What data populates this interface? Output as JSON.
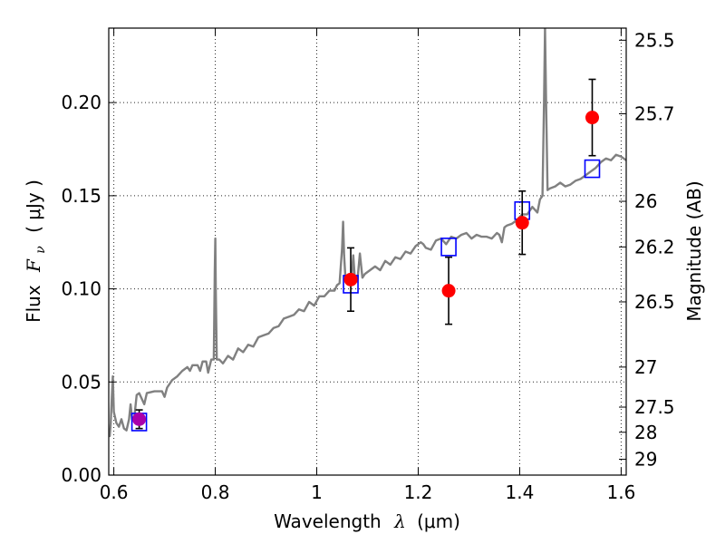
{
  "chart_data": {
    "type": "scatter",
    "title": "",
    "xlabel": {
      "prefix": "Wavelength",
      "symbol": "λ",
      "unit": "(μm)"
    },
    "ylabel": {
      "prefix": "Flux",
      "symbol": "F",
      "sub": "ν",
      "unit": "( μJy )"
    },
    "ylabel_right": "Magnitude (AB)",
    "xlim": [
      0.59,
      1.61
    ],
    "ylim": [
      0.0,
      0.24
    ],
    "grid": true,
    "x_ticks": [
      {
        "value": 0.6,
        "label": "0.6"
      },
      {
        "value": 0.8,
        "label": "0.8"
      },
      {
        "value": 1.0,
        "label": "1"
      },
      {
        "value": 1.2,
        "label": "1.2"
      },
      {
        "value": 1.4,
        "label": "1.4"
      },
      {
        "value": 1.6,
        "label": "1.6"
      }
    ],
    "y_ticks": [
      {
        "value": 0.0,
        "label": "0.00"
      },
      {
        "value": 0.05,
        "label": "0.05"
      },
      {
        "value": 0.1,
        "label": "0.10"
      },
      {
        "value": 0.15,
        "label": "0.15"
      },
      {
        "value": 0.2,
        "label": "0.20"
      }
    ],
    "y_right_ticks": [
      {
        "value": 25.5,
        "label": "25.5"
      },
      {
        "value": 25.7,
        "label": "25.7"
      },
      {
        "value": 26.0,
        "label": "26"
      },
      {
        "value": 26.2,
        "label": "26.2"
      },
      {
        "value": 26.5,
        "label": "26.5"
      },
      {
        "value": 27.0,
        "label": "27"
      },
      {
        "value": 27.5,
        "label": "27.5"
      },
      {
        "value": 28.0,
        "label": "28"
      },
      {
        "value": 29.0,
        "label": "29"
      }
    ],
    "y_right_tick_positions_flux": [
      0.2335,
      0.194,
      0.147,
      0.1225,
      0.093,
      0.058,
      0.0365,
      0.023,
      0.0085
    ],
    "series": [
      {
        "kind": "line",
        "color": "#808080",
        "points": [
          [
            0.59,
            0.021
          ],
          [
            0.592,
            0.021
          ],
          [
            0.594,
            0.028
          ],
          [
            0.596,
            0.042
          ],
          [
            0.598,
            0.053
          ],
          [
            0.6,
            0.034
          ],
          [
            0.605,
            0.028
          ],
          [
            0.61,
            0.026
          ],
          [
            0.615,
            0.03
          ],
          [
            0.62,
            0.025
          ],
          [
            0.625,
            0.024
          ],
          [
            0.63,
            0.03
          ],
          [
            0.633,
            0.038
          ],
          [
            0.636,
            0.03
          ],
          [
            0.64,
            0.03
          ],
          [
            0.645,
            0.043
          ],
          [
            0.65,
            0.044
          ],
          [
            0.655,
            0.041
          ],
          [
            0.66,
            0.038
          ],
          [
            0.665,
            0.044
          ],
          [
            0.68,
            0.045
          ],
          [
            0.695,
            0.045
          ],
          [
            0.7,
            0.042
          ],
          [
            0.705,
            0.047
          ],
          [
            0.715,
            0.051
          ],
          [
            0.725,
            0.053
          ],
          [
            0.735,
            0.056
          ],
          [
            0.745,
            0.058
          ],
          [
            0.75,
            0.056
          ],
          [
            0.755,
            0.059
          ],
          [
            0.765,
            0.059
          ],
          [
            0.77,
            0.056
          ],
          [
            0.775,
            0.061
          ],
          [
            0.782,
            0.061
          ],
          [
            0.786,
            0.055
          ],
          [
            0.792,
            0.062
          ],
          [
            0.797,
            0.062
          ],
          [
            0.799,
            0.11
          ],
          [
            0.8,
            0.127
          ],
          [
            0.801,
            0.1
          ],
          [
            0.803,
            0.062
          ],
          [
            0.808,
            0.062
          ],
          [
            0.815,
            0.06
          ],
          [
            0.825,
            0.064
          ],
          [
            0.835,
            0.062
          ],
          [
            0.845,
            0.068
          ],
          [
            0.855,
            0.066
          ],
          [
            0.865,
            0.07
          ],
          [
            0.875,
            0.069
          ],
          [
            0.885,
            0.074
          ],
          [
            0.895,
            0.075
          ],
          [
            0.905,
            0.076
          ],
          [
            0.915,
            0.079
          ],
          [
            0.925,
            0.08
          ],
          [
            0.935,
            0.084
          ],
          [
            0.945,
            0.085
          ],
          [
            0.955,
            0.086
          ],
          [
            0.965,
            0.089
          ],
          [
            0.975,
            0.088
          ],
          [
            0.985,
            0.093
          ],
          [
            0.995,
            0.091
          ],
          [
            1.005,
            0.096
          ],
          [
            1.015,
            0.096
          ],
          [
            1.025,
            0.099
          ],
          [
            1.035,
            0.099
          ],
          [
            1.04,
            0.102
          ],
          [
            1.045,
            0.103
          ],
          [
            1.05,
            0.122
          ],
          [
            1.052,
            0.136
          ],
          [
            1.054,
            0.118
          ],
          [
            1.057,
            0.104
          ],
          [
            1.062,
            0.106
          ],
          [
            1.068,
            0.104
          ],
          [
            1.072,
            0.118
          ],
          [
            1.075,
            0.106
          ],
          [
            1.08,
            0.104
          ],
          [
            1.085,
            0.119
          ],
          [
            1.09,
            0.106
          ],
          [
            1.095,
            0.108
          ],
          [
            1.105,
            0.11
          ],
          [
            1.115,
            0.112
          ],
          [
            1.125,
            0.11
          ],
          [
            1.135,
            0.115
          ],
          [
            1.145,
            0.113
          ],
          [
            1.155,
            0.117
          ],
          [
            1.165,
            0.116
          ],
          [
            1.175,
            0.12
          ],
          [
            1.185,
            0.119
          ],
          [
            1.195,
            0.123
          ],
          [
            1.205,
            0.125
          ],
          [
            1.21,
            0.124
          ],
          [
            1.215,
            0.122
          ],
          [
            1.225,
            0.121
          ],
          [
            1.235,
            0.126
          ],
          [
            1.245,
            0.127
          ],
          [
            1.255,
            0.124
          ],
          [
            1.265,
            0.128
          ],
          [
            1.275,
            0.127
          ],
          [
            1.285,
            0.129
          ],
          [
            1.295,
            0.13
          ],
          [
            1.305,
            0.127
          ],
          [
            1.315,
            0.129
          ],
          [
            1.325,
            0.128
          ],
          [
            1.335,
            0.128
          ],
          [
            1.345,
            0.127
          ],
          [
            1.355,
            0.13
          ],
          [
            1.36,
            0.129
          ],
          [
            1.365,
            0.125
          ],
          [
            1.37,
            0.133
          ],
          [
            1.375,
            0.134
          ],
          [
            1.385,
            0.135
          ],
          [
            1.395,
            0.137
          ],
          [
            1.405,
            0.14
          ],
          [
            1.415,
            0.14
          ],
          [
            1.425,
            0.144
          ],
          [
            1.435,
            0.141
          ],
          [
            1.44,
            0.148
          ],
          [
            1.445,
            0.15
          ],
          [
            1.448,
            0.2
          ],
          [
            1.45,
            0.24
          ],
          [
            1.452,
            0.2
          ],
          [
            1.455,
            0.153
          ],
          [
            1.46,
            0.154
          ],
          [
            1.47,
            0.155
          ],
          [
            1.48,
            0.157
          ],
          [
            1.49,
            0.155
          ],
          [
            1.5,
            0.156
          ],
          [
            1.51,
            0.158
          ],
          [
            1.52,
            0.159
          ],
          [
            1.53,
            0.161
          ],
          [
            1.54,
            0.163
          ],
          [
            1.55,
            0.165
          ],
          [
            1.56,
            0.168
          ],
          [
            1.57,
            0.17
          ],
          [
            1.58,
            0.169
          ],
          [
            1.59,
            0.172
          ],
          [
            1.6,
            0.171
          ],
          [
            1.61,
            0.169
          ]
        ]
      },
      {
        "kind": "square",
        "color": "#0000ff",
        "points": [
          [
            0.65,
            0.0285
          ],
          [
            1.067,
            0.1025
          ],
          [
            1.26,
            0.1225
          ],
          [
            1.405,
            0.142
          ],
          [
            1.543,
            0.1645
          ]
        ]
      },
      {
        "kind": "errorbar",
        "color": "#ff0000",
        "points": [
          {
            "x": 0.65,
            "y": 0.03,
            "yerr": 0.005
          },
          {
            "x": 1.067,
            "y": 0.105,
            "yerr": 0.017
          },
          {
            "x": 1.26,
            "y": 0.099,
            "yerr": 0.018
          },
          {
            "x": 1.405,
            "y": 0.1355,
            "yerr": 0.017
          },
          {
            "x": 1.543,
            "y": 0.192,
            "yerr": 0.0205
          }
        ],
        "highlight": {
          "index": 0,
          "color": "#aa00aa"
        }
      }
    ]
  }
}
